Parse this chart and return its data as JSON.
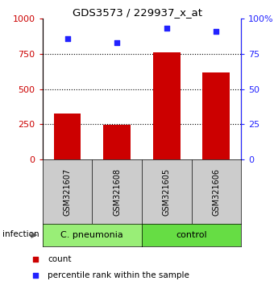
{
  "title": "GDS3573 / 229937_x_at",
  "samples": [
    "GSM321607",
    "GSM321608",
    "GSM321605",
    "GSM321606"
  ],
  "counts": [
    325,
    245,
    760,
    620
  ],
  "percentiles": [
    86,
    83,
    93,
    91
  ],
  "group_colors": [
    "#99ee88",
    "#66dd55"
  ],
  "sample_bg_color": "#cccccc",
  "bar_color": "#cc0000",
  "dot_color": "#2222ff",
  "ylim_left": [
    0,
    1000
  ],
  "ylim_right": [
    0,
    100
  ],
  "yticks_left": [
    0,
    250,
    500,
    750,
    1000
  ],
  "yticks_right": [
    0,
    25,
    50,
    75,
    100
  ],
  "yticklabels_right": [
    "0",
    "25",
    "50",
    "75",
    "100%"
  ],
  "infection_label": "infection",
  "legend_count": "count",
  "legend_percentile": "percentile rank within the sample",
  "dotted_lines": [
    250,
    500,
    750
  ],
  "group_split": 2,
  "group_label_1": "C. pneumonia",
  "group_label_2": "control",
  "group_color_1": "#99ee77",
  "group_color_2": "#66dd44"
}
